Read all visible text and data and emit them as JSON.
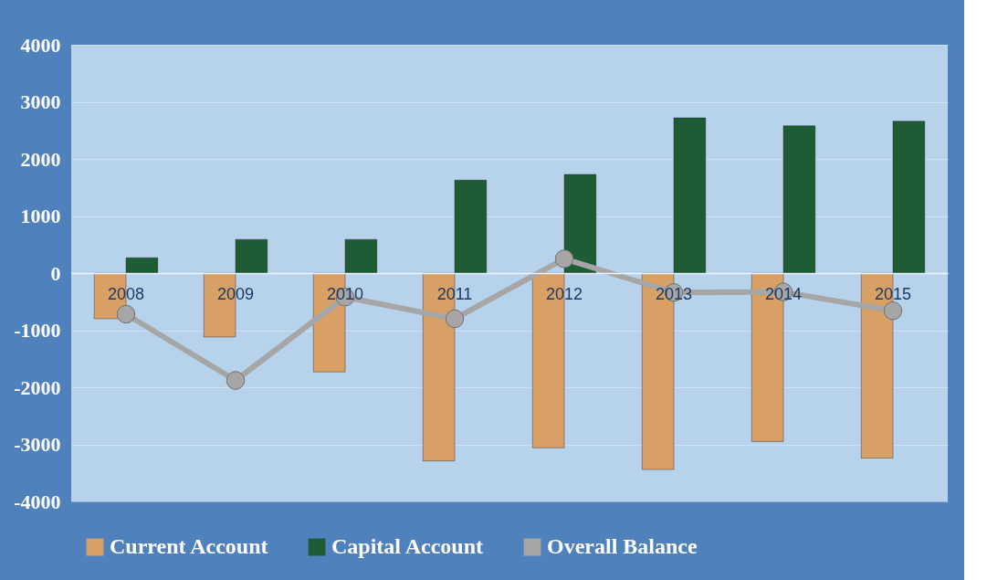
{
  "chart_data": {
    "type": "bar",
    "categories": [
      "2008",
      "2009",
      "2010",
      "2011",
      "2012",
      "2013",
      "2014",
      "2015"
    ],
    "series": [
      {
        "name": "Current Account",
        "color": "#d9a066",
        "values": [
          -800,
          -1120,
          -1730,
          -3290,
          -3060,
          -3440,
          -2950,
          -3240
        ]
      },
      {
        "name": "Capital Account",
        "color": "#1e5c36",
        "values": [
          270,
          590,
          590,
          1630,
          1730,
          2720,
          2580,
          2660
        ]
      },
      {
        "name": "Overall Balance",
        "type": "line",
        "color": "#a6a6a6",
        "marker": "circle",
        "values": [
          -720,
          -1880,
          -420,
          -800,
          250,
          -340,
          -330,
          -660
        ]
      }
    ],
    "ylim": [
      -4000,
      4000
    ],
    "yticks": [
      -4000,
      -3000,
      -2000,
      -1000,
      0,
      1000,
      2000,
      3000,
      4000
    ],
    "grid": "y",
    "legend": "bottom"
  }
}
